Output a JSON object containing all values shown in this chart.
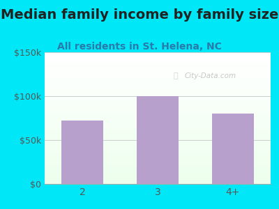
{
  "title": "Median family income by family size",
  "subtitle": "All residents in St. Helena, NC",
  "categories": [
    "2",
    "3",
    "4+"
  ],
  "values": [
    72000,
    100000,
    80000
  ],
  "bar_color": "#b8a0cc",
  "background_outer": "#00e8f8",
  "ylim": [
    0,
    150000
  ],
  "yticks": [
    0,
    50000,
    100000,
    150000
  ],
  "ytick_labels": [
    "$0",
    "$50k",
    "$100k",
    "$150k"
  ],
  "title_fontsize": 14,
  "subtitle_fontsize": 10,
  "title_color": "#222222",
  "subtitle_color": "#2a7aaa",
  "tick_color": "#555555",
  "watermark": "City-Data.com",
  "gradient_top": "#f5fff5",
  "gradient_bottom": "#e8f8ee"
}
